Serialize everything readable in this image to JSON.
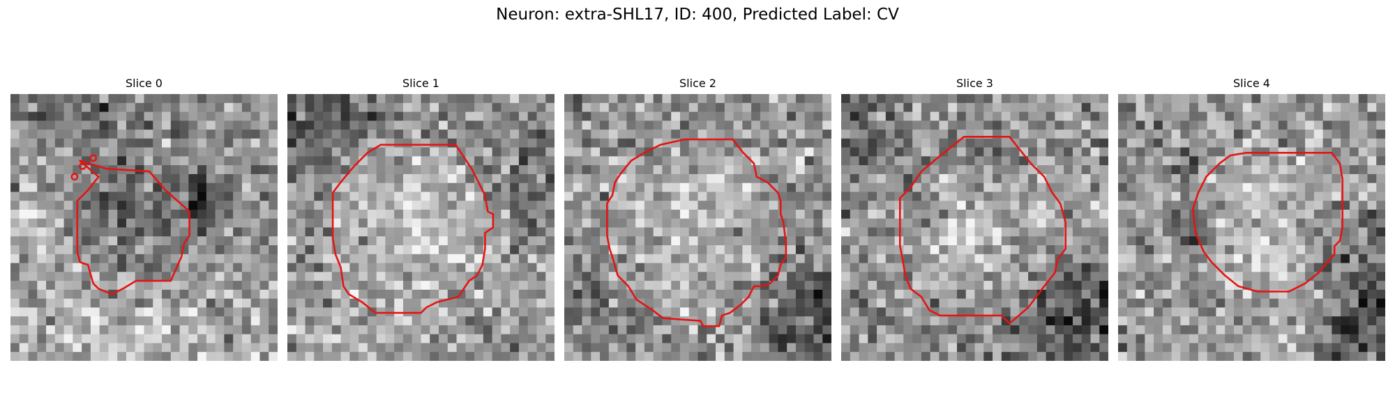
{
  "figure": {
    "title": "Neuron: extra-SHL17, ID: 400, Predicted Label: CV"
  },
  "panels": [
    {
      "title": "Slice 0"
    },
    {
      "title": "Slice 1"
    },
    {
      "title": "Slice 2"
    },
    {
      "title": "Slice 3"
    },
    {
      "title": "Slice 4"
    }
  ],
  "colors": {
    "contour": "#e41414",
    "background": "#ffffff"
  }
}
